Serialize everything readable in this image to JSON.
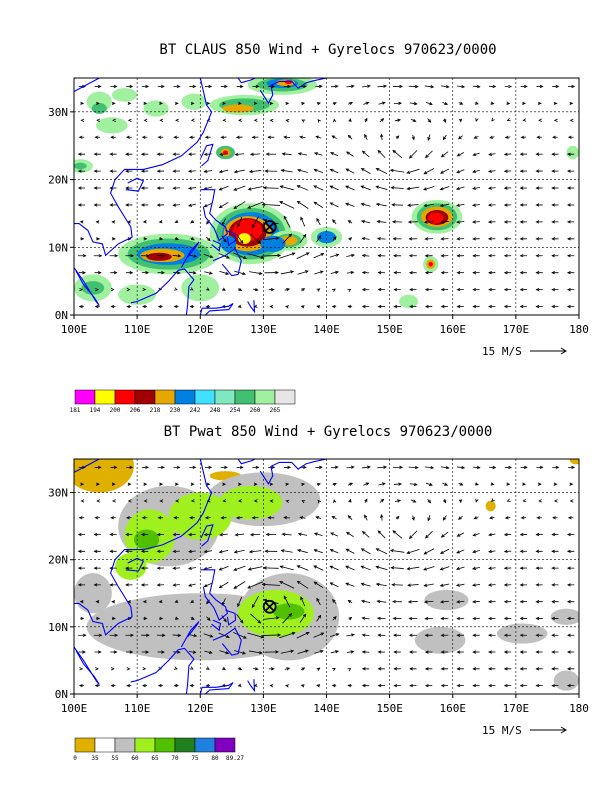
{
  "panels": [
    {
      "id": "claus",
      "title": "BT CLAUS 850 Wind + Gyrelocs 970623/0000",
      "lat_labels": [
        "0N",
        "10N",
        "20N",
        "30N"
      ],
      "lon_labels": [
        "100E",
        "110E",
        "120E",
        "130E",
        "140E",
        "150E",
        "160E",
        "170E",
        "180"
      ],
      "vector_ref_label": "15 M/S",
      "gyre_center": {
        "lon": 131.0,
        "lat": 13.0
      },
      "colorbar": {
        "labels": [
          "181",
          "194",
          "200",
          "206",
          "218",
          "230",
          "242",
          "248",
          "254",
          "260",
          "265"
        ],
        "colors": [
          "#ff00ff",
          "#ffff00",
          "#ff0000",
          "#a00000",
          "#e6a800",
          "#0080e0",
          "#40e0ff",
          "#80e8c0",
          "#40c070",
          "#a0f0a0",
          "#e6e6e6"
        ]
      },
      "fields": [
        {
          "lon": 104,
          "lat": 31.5,
          "rx": 2.0,
          "ry": 1.5,
          "color": "#a0f0a0"
        },
        {
          "lon": 104,
          "lat": 30.5,
          "rx": 1.2,
          "ry": 0.8,
          "color": "#40c070"
        },
        {
          "lon": 108,
          "lat": 32.5,
          "rx": 2.0,
          "ry": 1.0,
          "color": "#a0f0a0"
        },
        {
          "lon": 106,
          "lat": 28.0,
          "rx": 2.5,
          "ry": 1.2,
          "color": "#a0f0a0"
        },
        {
          "lon": 101,
          "lat": 22.0,
          "rx": 2.0,
          "ry": 1.0,
          "color": "#a0f0a0"
        },
        {
          "lon": 101,
          "lat": 22.0,
          "rx": 1.0,
          "ry": 0.5,
          "color": "#40c070"
        },
        {
          "lon": 113,
          "lat": 30.5,
          "rx": 2.0,
          "ry": 1.2,
          "color": "#a0f0a0"
        },
        {
          "lon": 119,
          "lat": 31.5,
          "rx": 2.0,
          "ry": 1.2,
          "color": "#a0f0a0"
        },
        {
          "lon": 127,
          "lat": 31.0,
          "rx": 5.5,
          "ry": 1.5,
          "color": "#a0f0a0"
        },
        {
          "lon": 127,
          "lat": 31.0,
          "rx": 4.0,
          "ry": 1.0,
          "color": "#40c070"
        },
        {
          "lon": 126,
          "lat": 30.5,
          "rx": 2.5,
          "ry": 0.6,
          "color": "#e6a800"
        },
        {
          "lon": 133,
          "lat": 34.0,
          "rx": 5.5,
          "ry": 1.5,
          "color": "#a0f0a0"
        },
        {
          "lon": 133,
          "lat": 34.0,
          "rx": 4.0,
          "ry": 1.0,
          "color": "#40c070"
        },
        {
          "lon": 133,
          "lat": 34.2,
          "rx": 2.5,
          "ry": 0.7,
          "color": "#0080e0"
        },
        {
          "lon": 133.5,
          "lat": 34.3,
          "rx": 1.5,
          "ry": 0.5,
          "color": "#e6a800"
        },
        {
          "lon": 134,
          "lat": 34.4,
          "rx": 0.6,
          "ry": 0.3,
          "color": "#ff0000"
        },
        {
          "lon": 124,
          "lat": 24.0,
          "rx": 1.5,
          "ry": 1.0,
          "color": "#40c070"
        },
        {
          "lon": 124,
          "lat": 24.0,
          "rx": 0.8,
          "ry": 0.6,
          "color": "#e6a800"
        },
        {
          "lon": 124,
          "lat": 24.0,
          "rx": 0.4,
          "ry": 0.3,
          "color": "#ff0000"
        },
        {
          "lon": 115,
          "lat": 9.0,
          "rx": 8.0,
          "ry": 3.0,
          "color": "#a0f0a0"
        },
        {
          "lon": 115,
          "lat": 9.0,
          "rx": 6.5,
          "ry": 2.3,
          "color": "#40c070"
        },
        {
          "lon": 115,
          "lat": 9.0,
          "rx": 5.0,
          "ry": 1.6,
          "color": "#0080e0"
        },
        {
          "lon": 114,
          "lat": 8.8,
          "rx": 3.5,
          "ry": 1.0,
          "color": "#e6a800"
        },
        {
          "lon": 113.5,
          "lat": 8.6,
          "rx": 2.0,
          "ry": 0.6,
          "color": "#a00000"
        },
        {
          "lon": 103,
          "lat": 4.0,
          "rx": 3.0,
          "ry": 2.0,
          "color": "#a0f0a0"
        },
        {
          "lon": 103,
          "lat": 4.0,
          "rx": 1.8,
          "ry": 1.0,
          "color": "#40c070"
        },
        {
          "lon": 120,
          "lat": 4.0,
          "rx": 3.0,
          "ry": 2.0,
          "color": "#a0f0a0"
        },
        {
          "lon": 110,
          "lat": 3.0,
          "rx": 3.0,
          "ry": 1.5,
          "color": "#a0f0a0"
        },
        {
          "lon": 128,
          "lat": 12.0,
          "rx": 6.5,
          "ry": 4.5,
          "color": "#a0f0a0"
        },
        {
          "lon": 128,
          "lat": 12.0,
          "rx": 5.5,
          "ry": 3.8,
          "color": "#40c070"
        },
        {
          "lon": 128,
          "lat": 12.0,
          "rx": 4.5,
          "ry": 3.2,
          "color": "#0080e0"
        },
        {
          "lon": 127.5,
          "lat": 12.0,
          "rx": 3.8,
          "ry": 2.6,
          "color": "#e6a800"
        },
        {
          "lon": 127.5,
          "lat": 12.2,
          "rx": 3.0,
          "ry": 2.1,
          "color": "#a00000"
        },
        {
          "lon": 127.5,
          "lat": 12.5,
          "rx": 2.3,
          "ry": 1.6,
          "color": "#ff0000"
        },
        {
          "lon": 127.0,
          "lat": 11.3,
          "rx": 1.0,
          "ry": 0.8,
          "color": "#ffff00"
        },
        {
          "lon": 124.5,
          "lat": 10.5,
          "rx": 1.2,
          "ry": 1.2,
          "color": "#0080e0"
        },
        {
          "lon": 134,
          "lat": 11.0,
          "rx": 3.0,
          "ry": 1.5,
          "color": "#a0f0a0"
        },
        {
          "lon": 134,
          "lat": 11.0,
          "rx": 2.0,
          "ry": 1.0,
          "color": "#40c070"
        },
        {
          "lon": 134,
          "lat": 11.0,
          "rx": 1.4,
          "ry": 0.7,
          "color": "#e6a800"
        },
        {
          "lon": 131.5,
          "lat": 10.5,
          "rx": 2.0,
          "ry": 1.2,
          "color": "#0080e0"
        },
        {
          "lon": 140,
          "lat": 11.5,
          "rx": 2.5,
          "ry": 1.5,
          "color": "#a0f0a0"
        },
        {
          "lon": 140,
          "lat": 11.5,
          "rx": 1.5,
          "ry": 0.9,
          "color": "#0080e0"
        },
        {
          "lon": 157.5,
          "lat": 14.5,
          "rx": 4.0,
          "ry": 2.5,
          "color": "#a0f0a0"
        },
        {
          "lon": 157.5,
          "lat": 14.5,
          "rx": 3.2,
          "ry": 2.0,
          "color": "#40c070"
        },
        {
          "lon": 157.5,
          "lat": 14.5,
          "rx": 2.5,
          "ry": 1.5,
          "color": "#e6a800"
        },
        {
          "lon": 157.5,
          "lat": 14.4,
          "rx": 1.8,
          "ry": 1.1,
          "color": "#a00000"
        },
        {
          "lon": 157.3,
          "lat": 14.3,
          "rx": 1.2,
          "ry": 0.8,
          "color": "#ff0000"
        },
        {
          "lon": 156.5,
          "lat": 7.5,
          "rx": 1.2,
          "ry": 1.2,
          "color": "#a0f0a0"
        },
        {
          "lon": 156.5,
          "lat": 7.5,
          "rx": 0.7,
          "ry": 0.7,
          "color": "#e6a800"
        },
        {
          "lon": 156.5,
          "lat": 7.5,
          "rx": 0.35,
          "ry": 0.35,
          "color": "#ff0000"
        },
        {
          "lon": 153,
          "lat": 2.0,
          "rx": 1.5,
          "ry": 1.0,
          "color": "#a0f0a0"
        },
        {
          "lon": 179,
          "lat": 24.0,
          "rx": 1.0,
          "ry": 1.0,
          "color": "#a0f0a0"
        }
      ]
    },
    {
      "id": "pwat",
      "title": "BT Pwat 850 Wind + Gyrelocs 970623/0000",
      "lat_labels": [
        "0N",
        "10N",
        "20N",
        "30N"
      ],
      "lon_labels": [
        "100E",
        "110E",
        "120E",
        "130E",
        "140E",
        "150E",
        "160E",
        "170E",
        "180"
      ],
      "vector_ref_label": "15 M/S",
      "gyre_center": {
        "lon": 131.0,
        "lat": 13.0
      },
      "colorbar": {
        "labels": [
          "0",
          "35",
          "55",
          "60",
          "65",
          "70",
          "75",
          "80",
          "89.27"
        ],
        "colors": [
          "#e0b000",
          "#ffffff",
          "#c0c0c0",
          "#a0f020",
          "#50c000",
          "#208020",
          "#2080e0",
          "#8000c0"
        ]
      },
      "fields": [
        {
          "lon": 104,
          "lat": 34.0,
          "rx": 5.5,
          "ry": 4.0,
          "color": "#e0b000"
        },
        {
          "lon": 124,
          "lat": 32.5,
          "rx": 2.5,
          "ry": 0.7,
          "color": "#e0b000"
        },
        {
          "lon": 179.5,
          "lat": 35.0,
          "rx": 1.0,
          "ry": 0.8,
          "color": "#e0b000"
        },
        {
          "lon": 166,
          "lat": 28.0,
          "rx": 0.8,
          "ry": 0.8,
          "color": "#e0b000"
        },
        {
          "lon": 115,
          "lat": 25.0,
          "rx": 8.0,
          "ry": 6.0,
          "color": "#c0c0c0"
        },
        {
          "lon": 130,
          "lat": 29.0,
          "rx": 9.0,
          "ry": 4.0,
          "color": "#c0c0c0"
        },
        {
          "lon": 120,
          "lat": 10.0,
          "rx": 18.0,
          "ry": 5.0,
          "color": "#c0c0c0"
        },
        {
          "lon": 134,
          "lat": 11.5,
          "rx": 8.0,
          "ry": 6.5,
          "color": "#c0c0c0"
        },
        {
          "lon": 158,
          "lat": 8.0,
          "rx": 4.0,
          "ry": 2.0,
          "color": "#c0c0c0"
        },
        {
          "lon": 171,
          "lat": 9.0,
          "rx": 4.0,
          "ry": 1.5,
          "color": "#c0c0c0"
        },
        {
          "lon": 159,
          "lat": 14.0,
          "rx": 3.5,
          "ry": 1.5,
          "color": "#c0c0c0"
        },
        {
          "lon": 178,
          "lat": 2.0,
          "rx": 2.0,
          "ry": 1.5,
          "color": "#c0c0c0"
        },
        {
          "lon": 178,
          "lat": 11.5,
          "rx": 2.5,
          "ry": 1.2,
          "color": "#c0c0c0"
        },
        {
          "lon": 103,
          "lat": 15.0,
          "rx": 3.0,
          "ry": 3.0,
          "color": "#c0c0c0"
        },
        {
          "lon": 112,
          "lat": 23.5,
          "rx": 4.0,
          "ry": 4.0,
          "color": "#a0f020"
        },
        {
          "lon": 120,
          "lat": 26.5,
          "rx": 5.0,
          "ry": 3.5,
          "color": "#a0f020"
        },
        {
          "lon": 128,
          "lat": 28.5,
          "rx": 5.0,
          "ry": 2.5,
          "color": "#a0f020"
        },
        {
          "lon": 132,
          "lat": 12.0,
          "rx": 6.0,
          "ry": 3.5,
          "color": "#a0f020"
        },
        {
          "lon": 109,
          "lat": 19.0,
          "rx": 2.5,
          "ry": 2.0,
          "color": "#a0f020"
        },
        {
          "lon": 111.5,
          "lat": 23.0,
          "rx": 2.0,
          "ry": 1.5,
          "color": "#50c000"
        },
        {
          "lon": 134,
          "lat": 12.3,
          "rx": 2.5,
          "ry": 1.2,
          "color": "#50c000"
        }
      ]
    }
  ]
}
